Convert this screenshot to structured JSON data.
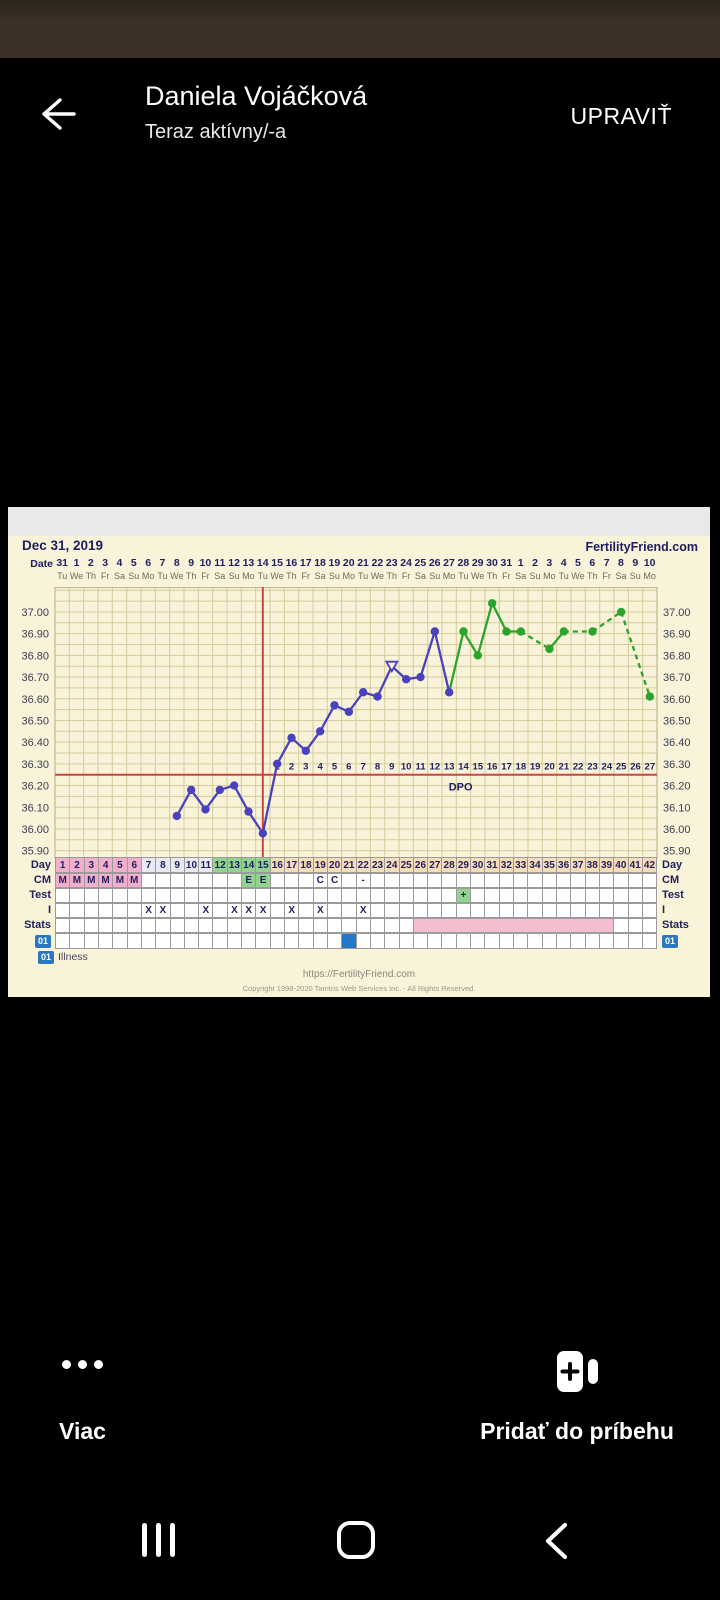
{
  "app": {
    "header": {
      "title": "Daniela Vojáčková",
      "subtitle": "Teraz aktívny/-a",
      "edit_label": "UPRAVIŤ"
    },
    "actions": {
      "more_label": "Viac",
      "add_story_label": "Pridať do príbehu"
    }
  },
  "chart_data": {
    "type": "line",
    "title": "Dec 31, 2019",
    "brand": "FertilityFriend.com",
    "date_label": "Date",
    "dpo_label": "DPO",
    "ylim": [
      35.87,
      37.115
    ],
    "y_ticks": [
      "37.00",
      "36.90",
      "36.80",
      "36.70",
      "36.60",
      "36.50",
      "36.40",
      "36.30",
      "36.20",
      "36.10",
      "36.00",
      "35.90"
    ],
    "x_dates": [
      31,
      1,
      2,
      3,
      4,
      5,
      6,
      7,
      8,
      9,
      10,
      11,
      12,
      13,
      14,
      15,
      16,
      17,
      18,
      19,
      20,
      21,
      22,
      23,
      24,
      25,
      26,
      27,
      28,
      29,
      30,
      31,
      1,
      2,
      3,
      4,
      5,
      6,
      7,
      8,
      9,
      10
    ],
    "x_weekdays": [
      "Tu",
      "We",
      "Th",
      "Fr",
      "Sa",
      "Su",
      "Mo",
      "Tu",
      "We",
      "Th",
      "Fr",
      "Sa",
      "Su",
      "Mo",
      "Tu",
      "We",
      "Th",
      "Fr",
      "Sa",
      "Su",
      "Mo",
      "Tu",
      "We",
      "Th",
      "Fr",
      "Sa",
      "Su",
      "Mo",
      "Tu",
      "We",
      "Th",
      "Fr",
      "Sa",
      "Su",
      "Mo",
      "Tu",
      "We",
      "Th",
      "Fr",
      "Sa",
      "Su",
      "Mo"
    ],
    "coverline": 36.25,
    "ovulation_day": 15,
    "dpo_start_day": 16,
    "dpo_count": 27,
    "series": [
      {
        "name": "BBT (°C)",
        "points": [
          {
            "day": 9,
            "temp": 36.06
          },
          {
            "day": 10,
            "temp": 36.18
          },
          {
            "day": 11,
            "temp": 36.09
          },
          {
            "day": 12,
            "temp": 36.18
          },
          {
            "day": 13,
            "temp": 36.2
          },
          {
            "day": 14,
            "temp": 36.08
          },
          {
            "day": 15,
            "temp": 35.98
          },
          {
            "day": 16,
            "temp": 36.3
          },
          {
            "day": 17,
            "temp": 36.42
          },
          {
            "day": 18,
            "temp": 36.36
          },
          {
            "day": 19,
            "temp": 36.45
          },
          {
            "day": 20,
            "temp": 36.57
          },
          {
            "day": 21,
            "temp": 36.54
          },
          {
            "day": 22,
            "temp": 36.63
          },
          {
            "day": 23,
            "temp": 36.61
          },
          {
            "day": 24,
            "temp": 36.75,
            "marker": "open-triangle"
          },
          {
            "day": 25,
            "temp": 36.69
          },
          {
            "day": 26,
            "temp": 36.7
          },
          {
            "day": 27,
            "temp": 36.91
          },
          {
            "day": 28,
            "temp": 36.63
          },
          {
            "day": 29,
            "temp": 36.91,
            "phase": "green"
          },
          {
            "day": 30,
            "temp": 36.8,
            "phase": "green"
          },
          {
            "day": 31,
            "temp": 37.04,
            "phase": "green"
          },
          {
            "day": 32,
            "temp": 36.91,
            "phase": "green"
          },
          {
            "day": 33,
            "temp": 36.91,
            "phase": "green"
          },
          {
            "day": 35,
            "temp": 36.83,
            "phase": "green"
          },
          {
            "day": 36,
            "temp": 36.91,
            "phase": "green"
          },
          {
            "day": 38,
            "temp": 36.91,
            "phase": "green"
          },
          {
            "day": 40,
            "temp": 37.0,
            "phase": "green"
          },
          {
            "day": 42,
            "temp": 36.61,
            "phase": "green"
          }
        ]
      }
    ],
    "table": {
      "day_label": "Day",
      "cm_label": "CM",
      "test_label": "Test",
      "i_label": "I",
      "stats_label": "Stats",
      "day_count": 42,
      "cm": {
        "1": "M",
        "2": "M",
        "3": "M",
        "4": "M",
        "5": "M",
        "6": "M",
        "14": "E",
        "15": "E",
        "19": "C",
        "20": "C",
        "22": "-"
      },
      "test": {
        "29": "+"
      },
      "intercourse_days": [
        7,
        8,
        11,
        13,
        14,
        15,
        17,
        19,
        22
      ],
      "stats_bar": {
        "start": 26,
        "end": 39
      },
      "illness_day": 21,
      "day_color_ranges": {
        "menses": [
          1,
          6
        ],
        "pre_fertile": [
          7,
          11
        ],
        "fertile": [
          12,
          15
        ],
        "post": [
          16,
          42
        ]
      }
    },
    "legend": {
      "badge": "01",
      "label": "Illness"
    },
    "footer": {
      "url": "https://FertilityFriend.com",
      "copyright": "Copyright 1998-2020 Tamtris Web Services Inc. - All Rights Reserved."
    },
    "colors": {
      "cream": "#f8f3d9",
      "grid": "#d6cb9d",
      "grid_frame": "#c4b98c",
      "navy": "#1f1f5e",
      "axis": "#3d3d52",
      "blue": "#4a42bd",
      "green": "#2aa42a",
      "red": "#cc4545",
      "cell_border": "#9b9b9b",
      "menses_pink": "#f2aecb",
      "fertile_green": "#90d490",
      "luteal_peach": "#f8dcb8",
      "pre_gray": "#e9e9f1",
      "stats_pink": "#f5bdd2",
      "illness_blue": "#2478c8",
      "badge_blue": "#2a78c0"
    }
  }
}
